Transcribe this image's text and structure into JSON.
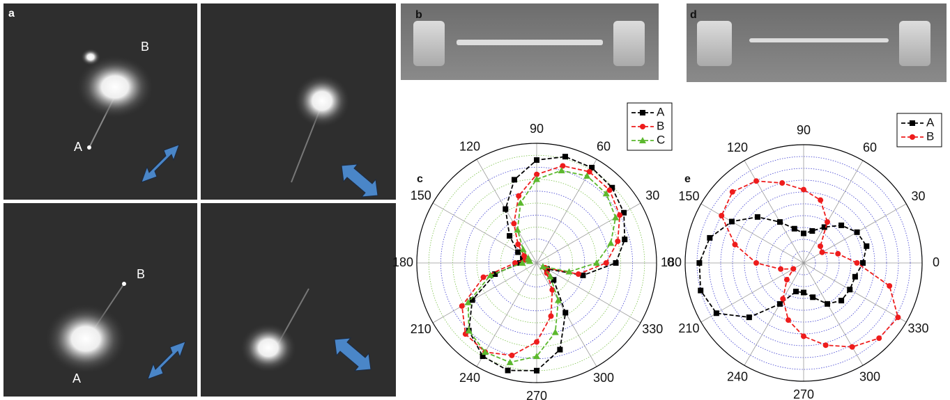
{
  "image_panel": {
    "label": "a",
    "annotations": [
      "B",
      "A",
      "B",
      "A"
    ]
  },
  "sem_panels": [
    {
      "label": "b"
    },
    {
      "label": "d"
    }
  ],
  "chart_data": [
    {
      "type": "polar",
      "panel_label": "c",
      "rlim": [
        0,
        1
      ],
      "rticks": [
        0.1,
        0.2,
        0.3,
        0.4,
        0.5,
        0.6,
        0.7,
        0.8,
        0.9,
        1.0
      ],
      "thetaticks": [
        0,
        30,
        60,
        90,
        120,
        150,
        180,
        210,
        240,
        270,
        300,
        330
      ],
      "grid": true,
      "legend": "top-right",
      "theta": [
        0,
        15,
        30,
        45,
        60,
        75,
        90,
        105,
        120,
        135,
        150,
        165,
        180,
        195,
        210,
        225,
        240,
        255,
        270,
        285,
        300,
        315,
        330,
        345
      ],
      "series": [
        {
          "name": "A",
          "color": "#000000",
          "marker": "square",
          "values": [
            0.66,
            0.76,
            0.84,
            0.89,
            0.92,
            0.92,
            0.86,
            0.72,
            0.52,
            0.32,
            0.18,
            0.12,
            0.14,
            0.36,
            0.62,
            0.8,
            0.9,
            0.93,
            0.9,
            0.75,
            0.48,
            0.2,
            0.1,
            0.4
          ]
        },
        {
          "name": "B",
          "color": "#ee1c1c",
          "marker": "circle",
          "values": [
            0.58,
            0.7,
            0.8,
            0.86,
            0.88,
            0.84,
            0.74,
            0.58,
            0.38,
            0.22,
            0.12,
            0.1,
            0.18,
            0.46,
            0.72,
            0.84,
            0.86,
            0.8,
            0.66,
            0.46,
            0.26,
            0.12,
            0.08,
            0.36
          ]
        },
        {
          "name": "C",
          "color": "#5cb82e",
          "marker": "triangle",
          "values": [
            0.5,
            0.64,
            0.76,
            0.82,
            0.84,
            0.8,
            0.7,
            0.52,
            0.32,
            0.16,
            0.08,
            0.06,
            0.12,
            0.4,
            0.66,
            0.8,
            0.86,
            0.86,
            0.78,
            0.6,
            0.36,
            0.16,
            0.06,
            0.28
          ]
        }
      ]
    },
    {
      "type": "polar",
      "panel_label": "e",
      "rlim": [
        0,
        1
      ],
      "rticks": [
        0.1,
        0.2,
        0.3,
        0.4,
        0.5,
        0.6,
        0.7,
        0.8,
        0.9,
        1.0
      ],
      "thetaticks": [
        0,
        30,
        60,
        90,
        120,
        150,
        180,
        210,
        240,
        270,
        300,
        330
      ],
      "grid": true,
      "legend": "top-right",
      "theta": [
        0,
        15,
        30,
        45,
        60,
        75,
        90,
        105,
        120,
        135,
        150,
        165,
        180,
        195,
        210,
        225,
        240,
        255,
        270,
        285,
        300,
        315,
        330,
        345
      ],
      "series": [
        {
          "name": "A",
          "color": "#000000",
          "marker": "square",
          "values": [
            0.5,
            0.55,
            0.52,
            0.45,
            0.35,
            0.28,
            0.25,
            0.3,
            0.4,
            0.55,
            0.7,
            0.82,
            0.88,
            0.9,
            0.85,
            0.65,
            0.4,
            0.25,
            0.25,
            0.3,
            0.4,
            0.45,
            0.45,
            0.45
          ]
        },
        {
          "name": "B",
          "color": "#ee1c1c",
          "marker": "circle",
          "values": [
            0.45,
            0.3,
            0.18,
            0.2,
            0.4,
            0.55,
            0.62,
            0.7,
            0.8,
            0.85,
            0.8,
            0.6,
            0.4,
            0.2,
            0.1,
            0.2,
            0.35,
            0.5,
            0.62,
            0.72,
            0.82,
            0.9,
            0.92,
            0.75
          ]
        }
      ]
    }
  ]
}
